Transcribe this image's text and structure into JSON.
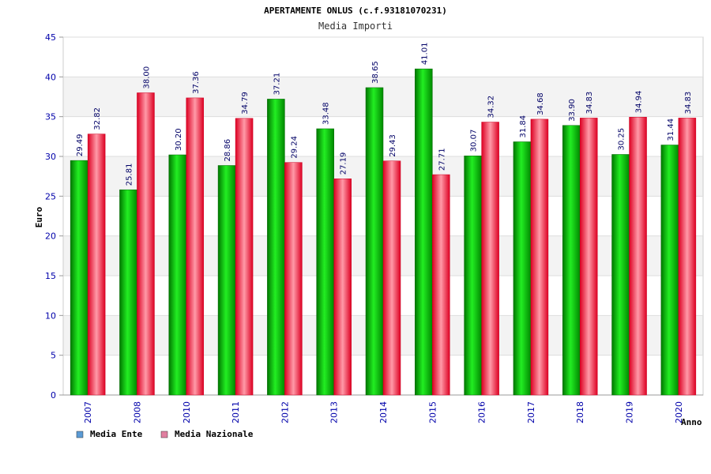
{
  "chart_data": {
    "type": "bar",
    "title": "APERTAMENTE ONLUS (c.f.93181070231)",
    "subtitle": "Media Importi",
    "xlabel": "Anno",
    "ylabel": "Euro",
    "ylim": [
      0,
      45
    ],
    "yticks": [
      0,
      5,
      10,
      15,
      20,
      25,
      30,
      35,
      40,
      45
    ],
    "grid": true,
    "legend_position": "bottom-left",
    "categories": [
      "2007",
      "2008",
      "2010",
      "2011",
      "2012",
      "2013",
      "2014",
      "2015",
      "2016",
      "2017",
      "2018",
      "2019",
      "2020"
    ],
    "series": [
      {
        "name": "Media Ente",
        "color": "#00bb00",
        "legend_color": "#5b9bd5",
        "values": [
          29.49,
          25.81,
          30.2,
          28.86,
          37.21,
          33.48,
          38.65,
          41.01,
          30.07,
          31.84,
          33.9,
          30.25,
          31.44
        ],
        "labels": [
          "29.49",
          "25.81",
          "30.20",
          "28.86",
          "37.21",
          "33.48",
          "38.65",
          "41.01",
          "30.07",
          "31.84",
          "33.90",
          "30.25",
          "31.44"
        ]
      },
      {
        "name": "Media Nazionale",
        "color": "#ee1133",
        "legend_color": "#e07fa0",
        "values": [
          32.82,
          38.0,
          37.36,
          34.79,
          29.24,
          27.19,
          29.43,
          27.71,
          34.32,
          34.68,
          34.83,
          34.94,
          34.83
        ],
        "labels": [
          "32.82",
          "38.00",
          "37.36",
          "34.79",
          "29.24",
          "27.19",
          "29.43",
          "27.71",
          "34.32",
          "34.68",
          "34.83",
          "34.94",
          "34.83"
        ]
      }
    ]
  }
}
